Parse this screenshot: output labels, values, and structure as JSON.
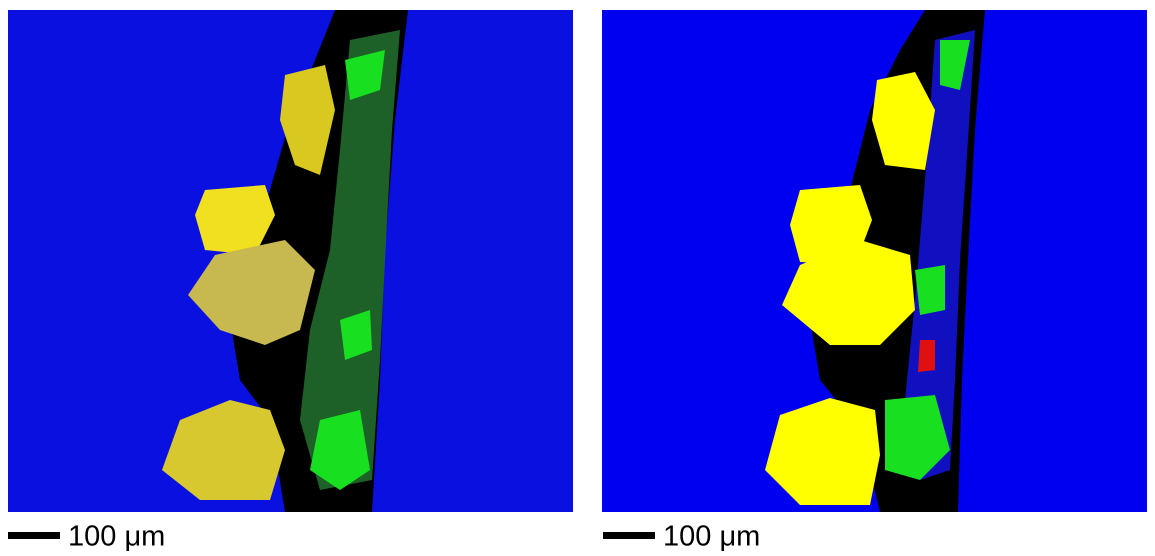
{
  "panels": [
    {
      "scale_label": "100 μm"
    },
    {
      "scale_label": "100 μm"
    }
  ]
}
